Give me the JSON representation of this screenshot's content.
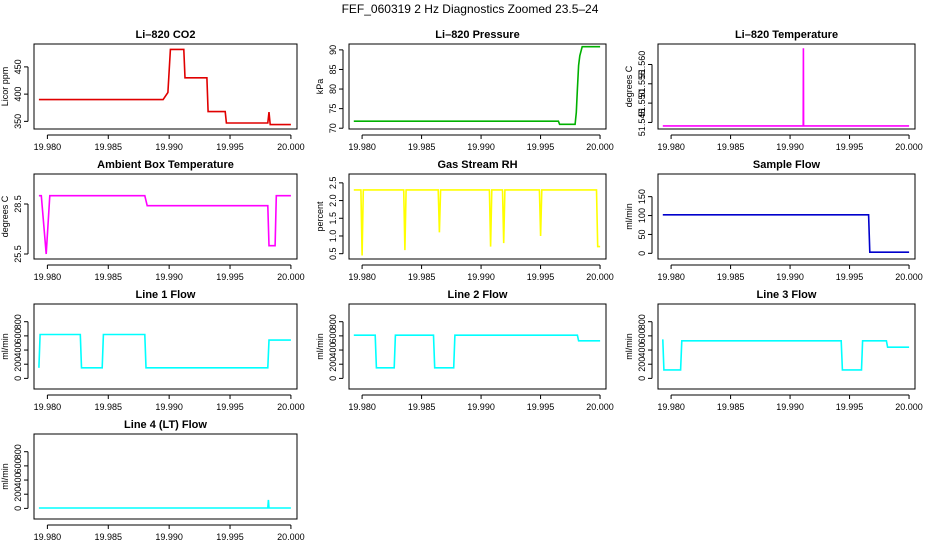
{
  "figure_title": "FEF_060319 2 Hz Diagnostics Zoomed 23.5–24",
  "colors": {
    "red": "#e00000",
    "green": "#00b000",
    "magenta": "#ff00ff",
    "yellow": "#ffff00",
    "blue": "#0000cc",
    "cyan": "#00ffff"
  },
  "chart_data": [
    {
      "type": "line",
      "title": "Li–820 CO2",
      "ylabel": "Licor ppm",
      "color": "red",
      "xlim": [
        19.9789,
        20.0005
      ],
      "ylim": [
        336,
        492
      ],
      "xticks": [
        "19.980",
        "19.985",
        "19.990",
        "19.995",
        "20.000"
      ],
      "yticks": [
        "350",
        "400",
        "450"
      ],
      "x": [
        19.9793,
        19.9895,
        19.9899,
        19.9901,
        19.9912,
        19.9913,
        19.9931,
        19.9932,
        19.9946,
        19.9947,
        19.9981,
        19.9982,
        19.9983,
        20.0
      ],
      "y": [
        390,
        390,
        403,
        482,
        482,
        430,
        430,
        368,
        368,
        347,
        347,
        367,
        344,
        344
      ]
    },
    {
      "type": "line",
      "title": "Li–820 Pressure",
      "ylabel": "kPa",
      "color": "green",
      "xlim": [
        19.9789,
        20.0005
      ],
      "ylim": [
        69.8,
        91.5
      ],
      "xticks": [
        "19.980",
        "19.985",
        "19.990",
        "19.995",
        "20.000"
      ],
      "yticks": [
        "70",
        "75",
        "80",
        "85",
        "90"
      ],
      "x": [
        19.9793,
        19.9965,
        19.9966,
        19.9979,
        19.998,
        19.9981,
        19.9982,
        19.9983,
        19.9985,
        20.0
      ],
      "y": [
        71.8,
        71.8,
        71.0,
        71.0,
        74,
        80,
        86,
        88.5,
        90.8,
        90.8
      ]
    },
    {
      "type": "line",
      "title": "Li–820 Temperature",
      "ylabel": "degrees C",
      "color": "magenta",
      "xlim": [
        19.9789,
        20.0005
      ],
      "ylim": [
        51.5433,
        51.5653
      ],
      "xticks": [
        "19.980",
        "19.985",
        "19.990",
        "19.995",
        "20.000"
      ],
      "yticks": [
        "51.545",
        "51.550",
        "51.555",
        "51.560"
      ],
      "x": [
        19.9793,
        19.9911,
        19.99112,
        19.99114,
        20.0
      ],
      "y": [
        51.5441,
        51.5441,
        51.5642,
        51.5441,
        51.5441
      ]
    },
    {
      "type": "line",
      "title": "Ambient Box Temperature",
      "ylabel": "degrees C",
      "color": "magenta",
      "xlim": [
        19.9789,
        20.0005
      ],
      "ylim": [
        25.2,
        30.3
      ],
      "xticks": [
        "19.980",
        "19.985",
        "19.990",
        "19.995",
        "20.000"
      ],
      "yticks": [
        "25.5",
        "28.5"
      ],
      "x": [
        19.9793,
        19.9795,
        19.9799,
        19.9802,
        19.988,
        19.9882,
        19.9981,
        19.9982,
        19.9987,
        19.9988,
        20.0
      ],
      "y": [
        29.0,
        29.0,
        25.5,
        29.0,
        29.0,
        28.4,
        28.4,
        26.0,
        26.0,
        29.0,
        29.0
      ]
    },
    {
      "type": "line",
      "title": "Gas Stream RH",
      "ylabel": "percent",
      "color": "yellow",
      "xlim": [
        19.9789,
        20.0005
      ],
      "ylim": [
        0.35,
        2.75
      ],
      "xticks": [
        "19.980",
        "19.985",
        "19.990",
        "19.995",
        "20.000"
      ],
      "yticks": [
        "0.5",
        "1.0",
        "1.5",
        "2.0",
        "2.5"
      ],
      "x": [
        19.9793,
        19.9799,
        19.98,
        19.9801,
        19.9835,
        19.9836,
        19.9837,
        19.9864,
        19.9865,
        19.9866,
        19.9907,
        19.9908,
        19.9909,
        19.9918,
        19.9919,
        19.992,
        19.9949,
        19.995,
        19.9951,
        19.9997,
        19.9998,
        20.0
      ],
      "y": [
        2.3,
        2.3,
        0.45,
        2.3,
        2.3,
        0.6,
        2.3,
        2.3,
        1.1,
        2.3,
        2.3,
        0.7,
        2.3,
        2.3,
        0.8,
        2.3,
        2.3,
        1.0,
        2.3,
        2.3,
        0.7,
        0.7
      ]
    },
    {
      "type": "line",
      "title": "Sample Flow",
      "ylabel": "ml/min",
      "color": "blue",
      "xlim": [
        19.9789,
        20.0005
      ],
      "ylim": [
        -15,
        210
      ],
      "xticks": [
        "19.980",
        "19.985",
        "19.990",
        "19.995",
        "20.000"
      ],
      "yticks": [
        "0",
        "50",
        "100",
        "150"
      ],
      "x": [
        19.9793,
        19.9966,
        19.9967,
        20.0
      ],
      "y": [
        102,
        102,
        3,
        3
      ]
    },
    {
      "type": "line",
      "title": "Line 1 Flow",
      "ylabel": "ml/min",
      "color": "cyan",
      "xlim": [
        19.9789,
        20.0005
      ],
      "ylim": [
        -150,
        1050
      ],
      "xticks": [
        "19.980",
        "19.985",
        "19.990",
        "19.995",
        "20.000"
      ],
      "yticks": [
        "0",
        "200",
        "400",
        "600",
        "800"
      ],
      "x": [
        19.9793,
        19.9794,
        19.9827,
        19.9828,
        19.9845,
        19.9846,
        19.988,
        19.9881,
        19.9981,
        19.9982,
        20.0
      ],
      "y": [
        150,
        620,
        620,
        150,
        150,
        620,
        620,
        150,
        150,
        540,
        540
      ]
    },
    {
      "type": "line",
      "title": "Line 2 Flow",
      "ylabel": "ml/min",
      "color": "cyan",
      "xlim": [
        19.9789,
        20.0005
      ],
      "ylim": [
        -150,
        1050
      ],
      "xticks": [
        "19.980",
        "19.985",
        "19.990",
        "19.995",
        "20.000"
      ],
      "yticks": [
        "0",
        "200",
        "400",
        "600",
        "800"
      ],
      "x": [
        19.9793,
        19.9811,
        19.9812,
        19.9827,
        19.9828,
        19.986,
        19.9861,
        19.9877,
        19.9878,
        19.9981,
        19.9982,
        20.0
      ],
      "y": [
        610,
        610,
        150,
        150,
        610,
        610,
        150,
        150,
        610,
        610,
        530,
        530
      ]
    },
    {
      "type": "line",
      "title": "Line 3 Flow",
      "ylabel": "ml/min",
      "color": "cyan",
      "xlim": [
        19.9789,
        20.0005
      ],
      "ylim": [
        -150,
        1050
      ],
      "xticks": [
        "19.980",
        "19.985",
        "19.990",
        "19.995",
        "20.000"
      ],
      "yticks": [
        "0",
        "200",
        "400",
        "600",
        "800"
      ],
      "x": [
        19.9793,
        19.9794,
        19.9808,
        19.9809,
        19.9943,
        19.9944,
        19.996,
        19.9961,
        19.9981,
        19.9982,
        20.0
      ],
      "y": [
        550,
        120,
        120,
        530,
        530,
        120,
        120,
        530,
        530,
        440,
        440
      ]
    },
    {
      "type": "line",
      "title": "Line 4 (LT) Flow",
      "ylabel": "ml/min",
      "color": "cyan",
      "xlim": [
        19.9789,
        20.0005
      ],
      "ylim": [
        -150,
        1050
      ],
      "xticks": [
        "19.980",
        "19.985",
        "19.990",
        "19.995",
        "20.000"
      ],
      "yticks": [
        "0",
        "200",
        "400",
        "600",
        "800"
      ],
      "x": [
        19.9793,
        19.9981,
        19.99815,
        19.9982,
        20.0
      ],
      "y": [
        5,
        5,
        120,
        5,
        5
      ]
    }
  ]
}
